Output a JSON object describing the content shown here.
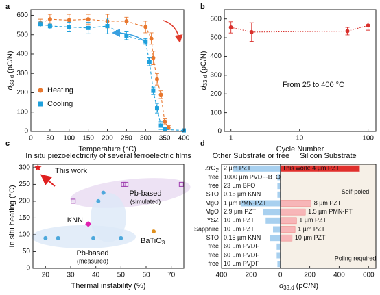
{
  "chart_data": [
    {
      "type": "line",
      "panel": "a",
      "x_label": "Temperature (°C)",
      "y_label": {
        "main": "d",
        "sub": "33,d",
        "unit": "(pC/N)"
      },
      "xlim": [
        0,
        400
      ],
      "xticks": [
        0,
        50,
        100,
        150,
        200,
        250,
        300,
        350,
        400
      ],
      "ylim": [
        0,
        630
      ],
      "yticks": [
        0,
        100,
        200,
        300,
        400,
        500,
        600
      ],
      "legend": "lower left",
      "line_style": "dashed",
      "series": [
        {
          "name": "Heating",
          "color": "#e8772e",
          "marker": "circle",
          "x": [
            25,
            50,
            100,
            150,
            200,
            250,
            300,
            315,
            320,
            330,
            340,
            350,
            360
          ],
          "values": [
            560,
            580,
            575,
            580,
            570,
            570,
            540,
            480,
            380,
            270,
            190,
            50,
            20
          ],
          "errors": [
            20,
            25,
            30,
            25,
            35,
            20,
            30,
            30,
            35,
            30,
            20,
            15,
            10
          ]
        },
        {
          "name": "Cooling",
          "color": "#1ea0dc",
          "marker": "square",
          "x": [
            25,
            50,
            100,
            150,
            200,
            250,
            300,
            310,
            320,
            330,
            340,
            350,
            400
          ],
          "values": [
            555,
            545,
            540,
            535,
            545,
            495,
            465,
            360,
            210,
            120,
            30,
            10,
            5
          ],
          "errors": [
            15,
            15,
            25,
            30,
            40,
            20,
            15,
            20,
            20,
            25,
            20,
            10,
            5
          ]
        }
      ]
    },
    {
      "type": "line",
      "panel": "b",
      "x_label": "Cycle Number",
      "y_label": {
        "main": "d",
        "sub": "33,d",
        "unit": "(pC/N)"
      },
      "xlog": true,
      "xlim": [
        0.8,
        130
      ],
      "xticks": [
        1,
        10,
        100
      ],
      "ylim": [
        0,
        650
      ],
      "yticks": [
        0,
        100,
        200,
        300,
        400,
        500,
        600
      ],
      "line_style": "dotted",
      "annotation": "From 25 to 400 °C",
      "series": [
        {
          "color": "#d9302c",
          "marker": "circle",
          "x": [
            1,
            2,
            50,
            100
          ],
          "values": [
            555,
            530,
            535,
            565
          ],
          "errors": [
            30,
            50,
            20,
            25
          ]
        }
      ]
    },
    {
      "type": "scatter",
      "panel": "c",
      "title": "In situ piezoelectricity of several ferroelectric films",
      "x_label": "Thermal instability (%)",
      "y_label": "In situ heating (°C)",
      "xlim": [
        15,
        75
      ],
      "xticks": [
        20,
        30,
        40,
        50,
        60,
        70
      ],
      "ylim": [
        0,
        310
      ],
      "yticks": [
        0,
        50,
        100,
        150,
        200,
        250,
        300
      ],
      "series": [
        {
          "name": "This work",
          "color": "#e02020",
          "marker": "star",
          "x": [
            17
          ],
          "values": [
            300
          ]
        },
        {
          "name": "Pb-based",
          "note": "(simulated)",
          "color": "#a040b0",
          "marker": "open-square",
          "x": [
            31,
            51,
            52,
            74
          ],
          "values": [
            200,
            250,
            250,
            250
          ]
        },
        {
          "name": "KNN",
          "color": "#e020b0",
          "marker": "diamond",
          "x": [
            37
          ],
          "values": [
            132
          ]
        },
        {
          "name": {
            "main": "BaTiO",
            "sub": "3"
          },
          "color": "#e0901e",
          "marker": "circle",
          "x": [
            63
          ],
          "values": [
            110
          ]
        },
        {
          "name": "Pb-based",
          "note": "(measured)",
          "color": "#4da8dc",
          "marker": "circle",
          "x": [
            20,
            25,
            39,
            41,
            43,
            50
          ],
          "values": [
            90,
            90,
            90,
            200,
            225,
            90
          ]
        }
      ]
    },
    {
      "type": "bar",
      "panel": "d",
      "orientation": "horizontal",
      "x_label": {
        "main": "d",
        "sub": "33,d",
        "unit": "(pC/N)"
      },
      "xlim": [
        -400,
        650
      ],
      "xticks": [
        {
          "value": -400,
          "label": "400"
        },
        {
          "value": -200,
          "label": "200"
        },
        0,
        200,
        400,
        600
      ],
      "categories": [
        {
          "main": "ZrO",
          "sub": "2"
        },
        "free",
        "free",
        "STO",
        "MgO",
        "MgO",
        "YSZ",
        "Sapphire",
        "STO",
        "free",
        "free",
        "free"
      ],
      "sections": [
        "Self-poled",
        "Poling required"
      ],
      "series": [
        {
          "name": "Other Substrate or free",
          "color": "#a8d0ef",
          "values": [
            -320,
            -20,
            -20,
            -20,
            -270,
            -120,
            -100,
            -50,
            -70,
            -25,
            -25,
            -20
          ],
          "labels": [
            "2 µm PZT",
            "1000 µm PVDF-BTO",
            "23 µm BFO",
            "0.15 µm KNN",
            "1 µm PMN-PZT",
            "2.9 µm PZT",
            "10 µm PZT",
            "10 µm PZT",
            "0.15 µm KNN",
            "60 µm PVDF",
            "60 µm PVDF",
            "10 µm PVDF"
          ]
        },
        {
          "name": "Silicon Substrate",
          "color": "#f7b6b8",
          "colors": [
            "#e0302c",
            null,
            null,
            null,
            "#f7b6b8",
            "#f7b6b8",
            "#f7b6b8",
            "#f7b6b8",
            "#f7b6b8",
            null,
            null,
            null
          ],
          "values": [
            540,
            null,
            null,
            null,
            210,
            170,
            110,
            100,
            80,
            null,
            null,
            null
          ],
          "labels": [
            "This work: 4 µm PZT",
            null,
            null,
            null,
            "8 µm PZT",
            "1.5 µm PMN-PT",
            "1 µm PZT",
            "1 µm PZT",
            "10 µm PZT",
            null,
            null,
            null
          ]
        }
      ]
    }
  ]
}
